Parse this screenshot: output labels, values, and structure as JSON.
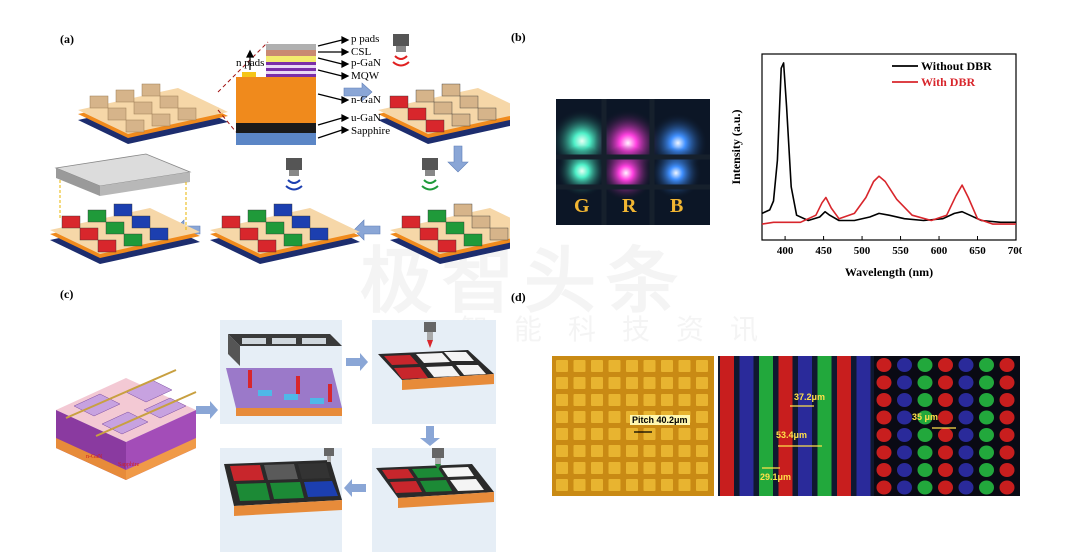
{
  "watermark": {
    "main": "极智头条",
    "sub": "智能科技资讯"
  },
  "panel_a": {
    "label": "(a)",
    "layers": [
      "p pads",
      "CSL",
      "p-GaN",
      "MQW",
      "n-GaN",
      "u-GaN",
      "Sapphire"
    ],
    "n_pads": "n pads"
  },
  "panel_b": {
    "label": "(b)",
    "photo_letters": [
      "G",
      "R",
      "B"
    ],
    "chart": {
      "ylabel": "Intensity (a.u.)",
      "xlabel": "Wavelength (nm)",
      "legend": [
        "Without DBR",
        "With DBR"
      ]
    }
  },
  "panel_c": {
    "label": "(c)"
  },
  "panel_d": {
    "label": "(d)",
    "annotations": {
      "pitch": "Pitch 40.2μm",
      "a": "37.2μm",
      "b": "53.4μm",
      "c": "29.1μm",
      "d": "35 μm"
    }
  },
  "colors": {
    "red": "#d8262c",
    "green": "#1f9a3a",
    "blue": "#1c3fb0",
    "orange": "#f08a1c",
    "gold": "#d9a428"
  },
  "chart_data": {
    "type": "line",
    "xlabel": "Wavelength (nm)",
    "ylabel": "Intensity (a.u.)",
    "xlim": [
      370,
      700
    ],
    "xticks": [
      400,
      450,
      500,
      550,
      600,
      650,
      700
    ],
    "legend_position": "top-right",
    "series": [
      {
        "name": "Without DBR",
        "x": [
          370,
          380,
          385,
          390,
          395,
          398,
          402,
          408,
          415,
          430,
          445,
          452,
          458,
          470,
          490,
          510,
          522,
          535,
          555,
          580,
          605,
          620,
          630,
          640,
          655,
          680,
          700
        ],
        "y": [
          0.15,
          0.17,
          0.22,
          0.45,
          0.97,
          1.0,
          0.75,
          0.3,
          0.14,
          0.11,
          0.13,
          0.16,
          0.14,
          0.11,
          0.11,
          0.13,
          0.15,
          0.14,
          0.12,
          0.11,
          0.12,
          0.15,
          0.16,
          0.14,
          0.11,
          0.1,
          0.1
        ]
      },
      {
        "name": "With DBR",
        "x": [
          370,
          385,
          400,
          420,
          440,
          448,
          453,
          460,
          470,
          490,
          505,
          515,
          522,
          530,
          545,
          565,
          590,
          610,
          622,
          630,
          638,
          650,
          670,
          700
        ],
        "y": [
          0.09,
          0.1,
          0.1,
          0.1,
          0.14,
          0.21,
          0.24,
          0.18,
          0.12,
          0.15,
          0.24,
          0.33,
          0.36,
          0.33,
          0.23,
          0.14,
          0.11,
          0.14,
          0.25,
          0.31,
          0.24,
          0.12,
          0.09,
          0.09
        ]
      }
    ]
  }
}
